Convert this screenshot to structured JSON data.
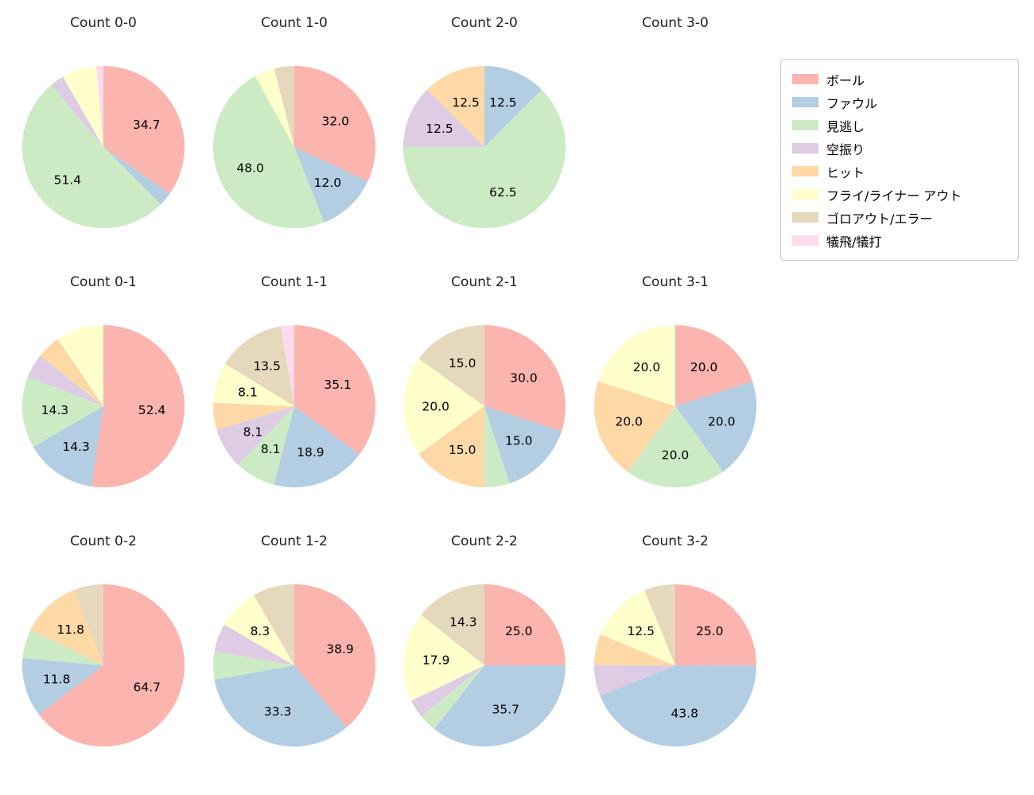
{
  "legend": {
    "items": [
      {
        "label": "ボール",
        "color": "#fbb4ae"
      },
      {
        "label": "ファウル",
        "color": "#b3cde3"
      },
      {
        "label": "見逃し",
        "color": "#ccebc5"
      },
      {
        "label": "空振り",
        "color": "#decbe4"
      },
      {
        "label": "ヒット",
        "color": "#fed9a6"
      },
      {
        "label": "フライ/ライナー アウト",
        "color": "#ffffcc"
      },
      {
        "label": "ゴロアウト/エラー",
        "color": "#e5d8bd"
      },
      {
        "label": "犠飛/犠打",
        "color": "#fddaec"
      }
    ]
  },
  "chart_data": [
    {
      "type": "pie",
      "title": "Count 0-0",
      "start_angle_deg": 0,
      "direction": "clockwise",
      "slices": [
        {
          "category": "ボール",
          "value": 34.7,
          "pct_label": "34.7"
        },
        {
          "category": "ファウル",
          "value": 2.8,
          "pct_label": ""
        },
        {
          "category": "見逃し",
          "value": 51.4,
          "pct_label": "51.4"
        },
        {
          "category": "空振り",
          "value": 2.8,
          "pct_label": ""
        },
        {
          "category": "フライ/ライナー アウト",
          "value": 6.9,
          "pct_label": ""
        },
        {
          "category": "犠飛/犠打",
          "value": 1.4,
          "pct_label": ""
        }
      ]
    },
    {
      "type": "pie",
      "title": "Count 1-0",
      "start_angle_deg": 0,
      "direction": "clockwise",
      "slices": [
        {
          "category": "ボール",
          "value": 32.0,
          "pct_label": "32.0"
        },
        {
          "category": "ファウル",
          "value": 12.0,
          "pct_label": "12.0"
        },
        {
          "category": "見逃し",
          "value": 48.0,
          "pct_label": "48.0"
        },
        {
          "category": "フライ/ライナー アウト",
          "value": 4.0,
          "pct_label": ""
        },
        {
          "category": "ゴロアウト/エラー",
          "value": 4.0,
          "pct_label": ""
        }
      ]
    },
    {
      "type": "pie",
      "title": "Count 2-0",
      "start_angle_deg": 0,
      "direction": "clockwise",
      "slices": [
        {
          "category": "ファウル",
          "value": 12.5,
          "pct_label": "12.5"
        },
        {
          "category": "見逃し",
          "value": 62.5,
          "pct_label": "62.5"
        },
        {
          "category": "空振り",
          "value": 12.5,
          "pct_label": "12.5"
        },
        {
          "category": "ヒット",
          "value": 12.5,
          "pct_label": "12.5"
        }
      ]
    },
    {
      "type": "pie",
      "title": "Count 3-0",
      "start_angle_deg": 0,
      "direction": "clockwise",
      "slices": []
    },
    {
      "type": "pie",
      "title": "Count 0-1",
      "start_angle_deg": 0,
      "direction": "clockwise",
      "slices": [
        {
          "category": "ボール",
          "value": 52.4,
          "pct_label": "52.4"
        },
        {
          "category": "ファウル",
          "value": 14.3,
          "pct_label": "14.3"
        },
        {
          "category": "見逃し",
          "value": 14.3,
          "pct_label": "14.3"
        },
        {
          "category": "空振り",
          "value": 4.8,
          "pct_label": ""
        },
        {
          "category": "ヒット",
          "value": 4.8,
          "pct_label": ""
        },
        {
          "category": "フライ/ライナー アウト",
          "value": 9.5,
          "pct_label": ""
        }
      ]
    },
    {
      "type": "pie",
      "title": "Count 1-1",
      "start_angle_deg": 0,
      "direction": "clockwise",
      "slices": [
        {
          "category": "ボール",
          "value": 35.1,
          "pct_label": "35.1"
        },
        {
          "category": "ファウル",
          "value": 18.9,
          "pct_label": "18.9"
        },
        {
          "category": "見逃し",
          "value": 8.1,
          "pct_label": "8.1"
        },
        {
          "category": "空振り",
          "value": 8.1,
          "pct_label": "8.1"
        },
        {
          "category": "ヒット",
          "value": 5.4,
          "pct_label": ""
        },
        {
          "category": "フライ/ライナー アウト",
          "value": 8.1,
          "pct_label": "8.1"
        },
        {
          "category": "ゴロアウト/エラー",
          "value": 13.5,
          "pct_label": "13.5"
        },
        {
          "category": "犠飛/犠打",
          "value": 2.7,
          "pct_label": ""
        }
      ]
    },
    {
      "type": "pie",
      "title": "Count 2-1",
      "start_angle_deg": 0,
      "direction": "clockwise",
      "slices": [
        {
          "category": "ボール",
          "value": 30.0,
          "pct_label": "30.0"
        },
        {
          "category": "ファウル",
          "value": 15.0,
          "pct_label": "15.0"
        },
        {
          "category": "見逃し",
          "value": 5.0,
          "pct_label": ""
        },
        {
          "category": "ヒット",
          "value": 15.0,
          "pct_label": "15.0"
        },
        {
          "category": "フライ/ライナー アウト",
          "value": 20.0,
          "pct_label": "20.0"
        },
        {
          "category": "ゴロアウト/エラー",
          "value": 15.0,
          "pct_label": "15.0"
        }
      ]
    },
    {
      "type": "pie",
      "title": "Count 3-1",
      "start_angle_deg": 0,
      "direction": "clockwise",
      "slices": [
        {
          "category": "ボール",
          "value": 20.0,
          "pct_label": "20.0"
        },
        {
          "category": "ファウル",
          "value": 20.0,
          "pct_label": "20.0"
        },
        {
          "category": "見逃し",
          "value": 20.0,
          "pct_label": "20.0"
        },
        {
          "category": "ヒット",
          "value": 20.0,
          "pct_label": "20.0"
        },
        {
          "category": "フライ/ライナー アウト",
          "value": 20.0,
          "pct_label": "20.0"
        }
      ]
    },
    {
      "type": "pie",
      "title": "Count 0-2",
      "start_angle_deg": 0,
      "direction": "clockwise",
      "slices": [
        {
          "category": "ボール",
          "value": 64.7,
          "pct_label": "64.7"
        },
        {
          "category": "ファウル",
          "value": 11.8,
          "pct_label": "11.8"
        },
        {
          "category": "見逃し",
          "value": 5.9,
          "pct_label": ""
        },
        {
          "category": "ヒット",
          "value": 11.8,
          "pct_label": "11.8"
        },
        {
          "category": "ゴロアウト/エラー",
          "value": 5.9,
          "pct_label": ""
        }
      ]
    },
    {
      "type": "pie",
      "title": "Count 1-2",
      "start_angle_deg": 0,
      "direction": "clockwise",
      "slices": [
        {
          "category": "ボール",
          "value": 38.9,
          "pct_label": "38.9"
        },
        {
          "category": "ファウル",
          "value": 33.3,
          "pct_label": "33.3"
        },
        {
          "category": "見逃し",
          "value": 5.6,
          "pct_label": ""
        },
        {
          "category": "空振り",
          "value": 5.6,
          "pct_label": ""
        },
        {
          "category": "フライ/ライナー アウト",
          "value": 8.3,
          "pct_label": "8.3"
        },
        {
          "category": "ゴロアウト/エラー",
          "value": 8.3,
          "pct_label": ""
        }
      ]
    },
    {
      "type": "pie",
      "title": "Count 2-2",
      "start_angle_deg": 0,
      "direction": "clockwise",
      "slices": [
        {
          "category": "ボール",
          "value": 25.0,
          "pct_label": "25.0"
        },
        {
          "category": "ファウル",
          "value": 35.7,
          "pct_label": "35.7"
        },
        {
          "category": "見逃し",
          "value": 3.6,
          "pct_label": ""
        },
        {
          "category": "空振り",
          "value": 3.6,
          "pct_label": ""
        },
        {
          "category": "フライ/ライナー アウト",
          "value": 17.9,
          "pct_label": "17.9"
        },
        {
          "category": "ゴロアウト/エラー",
          "value": 14.3,
          "pct_label": "14.3"
        }
      ]
    },
    {
      "type": "pie",
      "title": "Count 3-2",
      "start_angle_deg": 0,
      "direction": "clockwise",
      "slices": [
        {
          "category": "ボール",
          "value": 25.0,
          "pct_label": "25.0"
        },
        {
          "category": "ファウル",
          "value": 43.8,
          "pct_label": "43.8"
        },
        {
          "category": "空振り",
          "value": 6.2,
          "pct_label": ""
        },
        {
          "category": "ヒット",
          "value": 6.2,
          "pct_label": ""
        },
        {
          "category": "フライ/ライナー アウト",
          "value": 12.5,
          "pct_label": "12.5"
        },
        {
          "category": "ゴロアウト/エラー",
          "value": 6.2,
          "pct_label": ""
        }
      ]
    }
  ]
}
